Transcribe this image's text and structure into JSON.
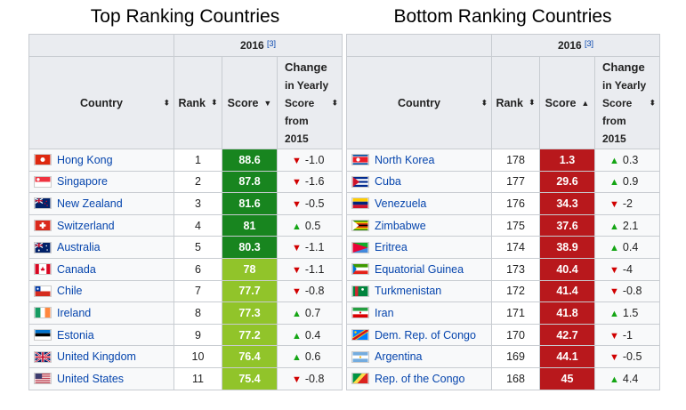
{
  "top": {
    "title": "Top Ranking Countries",
    "year": "2016",
    "ref": "[3]",
    "headers": {
      "country": "Country",
      "rank": "Rank",
      "score": "Score",
      "change": [
        "Change",
        "in Yearly",
        "Score",
        "from",
        "2015"
      ]
    },
    "sort_icons": {
      "country": "⬍",
      "rank": "⬍",
      "score": "▼"
    },
    "rows": [
      {
        "country": "Hong Kong",
        "flag": "hongkong",
        "rank": "1",
        "score": "88.6",
        "score_color": "#18851f",
        "dir": "down",
        "change": "-1.0"
      },
      {
        "country": "Singapore",
        "flag": "singapore",
        "rank": "2",
        "score": "87.8",
        "score_color": "#18851f",
        "dir": "down",
        "change": "-1.6"
      },
      {
        "country": "New Zealand",
        "flag": "newzealand",
        "rank": "3",
        "score": "81.6",
        "score_color": "#18851f",
        "dir": "down",
        "change": "-0.5"
      },
      {
        "country": "Switzerland",
        "flag": "switzerland",
        "rank": "4",
        "score": "81",
        "score_color": "#18851f",
        "dir": "up",
        "change": "0.5"
      },
      {
        "country": "Australia",
        "flag": "australia",
        "rank": "5",
        "score": "80.3",
        "score_color": "#18851f",
        "dir": "down",
        "change": "-1.1"
      },
      {
        "country": "Canada",
        "flag": "canada",
        "rank": "6",
        "score": "78",
        "score_color": "#91c42a",
        "dir": "down",
        "change": "-1.1"
      },
      {
        "country": "Chile",
        "flag": "chile",
        "rank": "7",
        "score": "77.7",
        "score_color": "#91c42a",
        "dir": "down",
        "change": "-0.8"
      },
      {
        "country": "Ireland",
        "flag": "ireland",
        "rank": "8",
        "score": "77.3",
        "score_color": "#91c42a",
        "dir": "up",
        "change": "0.7"
      },
      {
        "country": "Estonia",
        "flag": "estonia",
        "rank": "9",
        "score": "77.2",
        "score_color": "#91c42a",
        "dir": "up",
        "change": "0.4"
      },
      {
        "country": "United Kingdom",
        "flag": "uk",
        "rank": "10",
        "score": "76.4",
        "score_color": "#91c42a",
        "dir": "up",
        "change": "0.6"
      },
      {
        "country": "United States",
        "flag": "us",
        "rank": "11",
        "score": "75.4",
        "score_color": "#91c42a",
        "dir": "down",
        "change": "-0.8"
      }
    ]
  },
  "bottom": {
    "title": "Bottom Ranking Countries",
    "year": "2016",
    "ref": "[3]",
    "headers": {
      "country": "Country",
      "rank": "Rank",
      "score": "Score",
      "change": [
        "Change",
        "in Yearly",
        "Score",
        "from",
        "2015"
      ]
    },
    "sort_icons": {
      "country": "⬍",
      "rank": "⬍",
      "score": "▲"
    },
    "rows": [
      {
        "country": "North Korea",
        "flag": "northkorea",
        "rank": "178",
        "score": "1.3",
        "score_color": "#b8181c",
        "dir": "up",
        "change": "0.3"
      },
      {
        "country": "Cuba",
        "flag": "cuba",
        "rank": "177",
        "score": "29.6",
        "score_color": "#b8181c",
        "dir": "up",
        "change": "0.9"
      },
      {
        "country": "Venezuela",
        "flag": "venezuela",
        "rank": "176",
        "score": "34.3",
        "score_color": "#b8181c",
        "dir": "down",
        "change": "-2"
      },
      {
        "country": "Zimbabwe",
        "flag": "zimbabwe",
        "rank": "175",
        "score": "37.6",
        "score_color": "#b8181c",
        "dir": "up",
        "change": "2.1"
      },
      {
        "country": "Eritrea",
        "flag": "eritrea",
        "rank": "174",
        "score": "38.9",
        "score_color": "#b8181c",
        "dir": "up",
        "change": "0.4"
      },
      {
        "country": "Equatorial Guinea",
        "flag": "eqguinea",
        "rank": "173",
        "score": "40.4",
        "score_color": "#b8181c",
        "dir": "down",
        "change": "-4"
      },
      {
        "country": "Turkmenistan",
        "flag": "turkmenistan",
        "rank": "172",
        "score": "41.4",
        "score_color": "#b8181c",
        "dir": "down",
        "change": "-0.8"
      },
      {
        "country": "Iran",
        "flag": "iran",
        "rank": "171",
        "score": "41.8",
        "score_color": "#b8181c",
        "dir": "up",
        "change": "1.5"
      },
      {
        "country": "Dem. Rep. of Congo",
        "flag": "drcongo",
        "rank": "170",
        "score": "42.7",
        "score_color": "#b8181c",
        "dir": "down",
        "change": "-1"
      },
      {
        "country": "Argentina",
        "flag": "argentina",
        "rank": "169",
        "score": "44.1",
        "score_color": "#b8181c",
        "dir": "down",
        "change": "-0.5"
      },
      {
        "country": "Rep. of the Congo",
        "flag": "congo",
        "rank": "168",
        "score": "45",
        "score_color": "#b8181c",
        "dir": "up",
        "change": "4.4"
      }
    ]
  }
}
